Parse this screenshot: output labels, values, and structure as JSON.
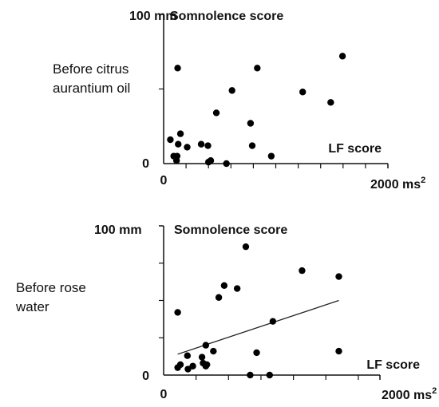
{
  "chart_data": [
    {
      "type": "scatter",
      "row_label": [
        "Before citrus",
        "aurantium oil"
      ],
      "title": "Somnolence score",
      "xlabel": "LF score",
      "y_top_label": "100 mm",
      "y_zero_label": "0",
      "x_zero_label": "0",
      "x_end_label": "2000 ms",
      "x_end_sup": "2",
      "xlim": [
        0,
        2000
      ],
      "ylim": [
        0,
        100
      ],
      "x_minor_ticks": [
        200,
        400,
        600,
        800,
        1000,
        1200,
        1400,
        1600,
        1800
      ],
      "y_minor_ticks": [
        50
      ],
      "points": [
        {
          "x": 60,
          "y": 16
        },
        {
          "x": 90,
          "y": 5
        },
        {
          "x": 115,
          "y": 2
        },
        {
          "x": 120,
          "y": 5
        },
        {
          "x": 130,
          "y": 13
        },
        {
          "x": 150,
          "y": 20
        },
        {
          "x": 210,
          "y": 11
        },
        {
          "x": 125,
          "y": 64
        },
        {
          "x": 335,
          "y": 13
        },
        {
          "x": 395,
          "y": 12
        },
        {
          "x": 400,
          "y": 1
        },
        {
          "x": 420,
          "y": 2
        },
        {
          "x": 470,
          "y": 34
        },
        {
          "x": 560,
          "y": 0
        },
        {
          "x": 610,
          "y": 49
        },
        {
          "x": 775,
          "y": 27
        },
        {
          "x": 790,
          "y": 12
        },
        {
          "x": 835,
          "y": 64
        },
        {
          "x": 960,
          "y": 5
        },
        {
          "x": 1240,
          "y": 48
        },
        {
          "x": 1490,
          "y": 41
        },
        {
          "x": 1595,
          "y": 72
        }
      ],
      "trendline": null
    },
    {
      "type": "scatter",
      "row_label": [
        "Before rose",
        "water"
      ],
      "title": "Somnolence score",
      "xlabel": "LF score",
      "y_top_label": "100 mm",
      "y_zero_label": "0",
      "x_zero_label": "0",
      "x_end_label": "2000 ms",
      "x_end_sup": "2",
      "xlim": [
        0,
        2000
      ],
      "ylim": [
        0,
        100
      ],
      "x_minor_ticks": [
        300,
        600,
        900,
        1200,
        1500,
        1800
      ],
      "y_minor_ticks": [
        25,
        50,
        75
      ],
      "points": [
        {
          "x": 130,
          "y": 42
        },
        {
          "x": 130,
          "y": 5
        },
        {
          "x": 155,
          "y": 7
        },
        {
          "x": 220,
          "y": 13
        },
        {
          "x": 225,
          "y": 4
        },
        {
          "x": 270,
          "y": 6
        },
        {
          "x": 355,
          "y": 12
        },
        {
          "x": 365,
          "y": 8
        },
        {
          "x": 390,
          "y": 6
        },
        {
          "x": 390,
          "y": 20
        },
        {
          "x": 400,
          "y": 7
        },
        {
          "x": 460,
          "y": 16
        },
        {
          "x": 510,
          "y": 52
        },
        {
          "x": 560,
          "y": 60
        },
        {
          "x": 680,
          "y": 58
        },
        {
          "x": 760,
          "y": 86
        },
        {
          "x": 800,
          "y": 0
        },
        {
          "x": 860,
          "y": 15
        },
        {
          "x": 980,
          "y": 0
        },
        {
          "x": 1010,
          "y": 36
        },
        {
          "x": 1280,
          "y": 70
        },
        {
          "x": 1620,
          "y": 66
        },
        {
          "x": 1620,
          "y": 16
        }
      ],
      "trendline": {
        "x1": 130,
        "y1": 14,
        "x2": 1620,
        "y2": 50
      }
    }
  ]
}
